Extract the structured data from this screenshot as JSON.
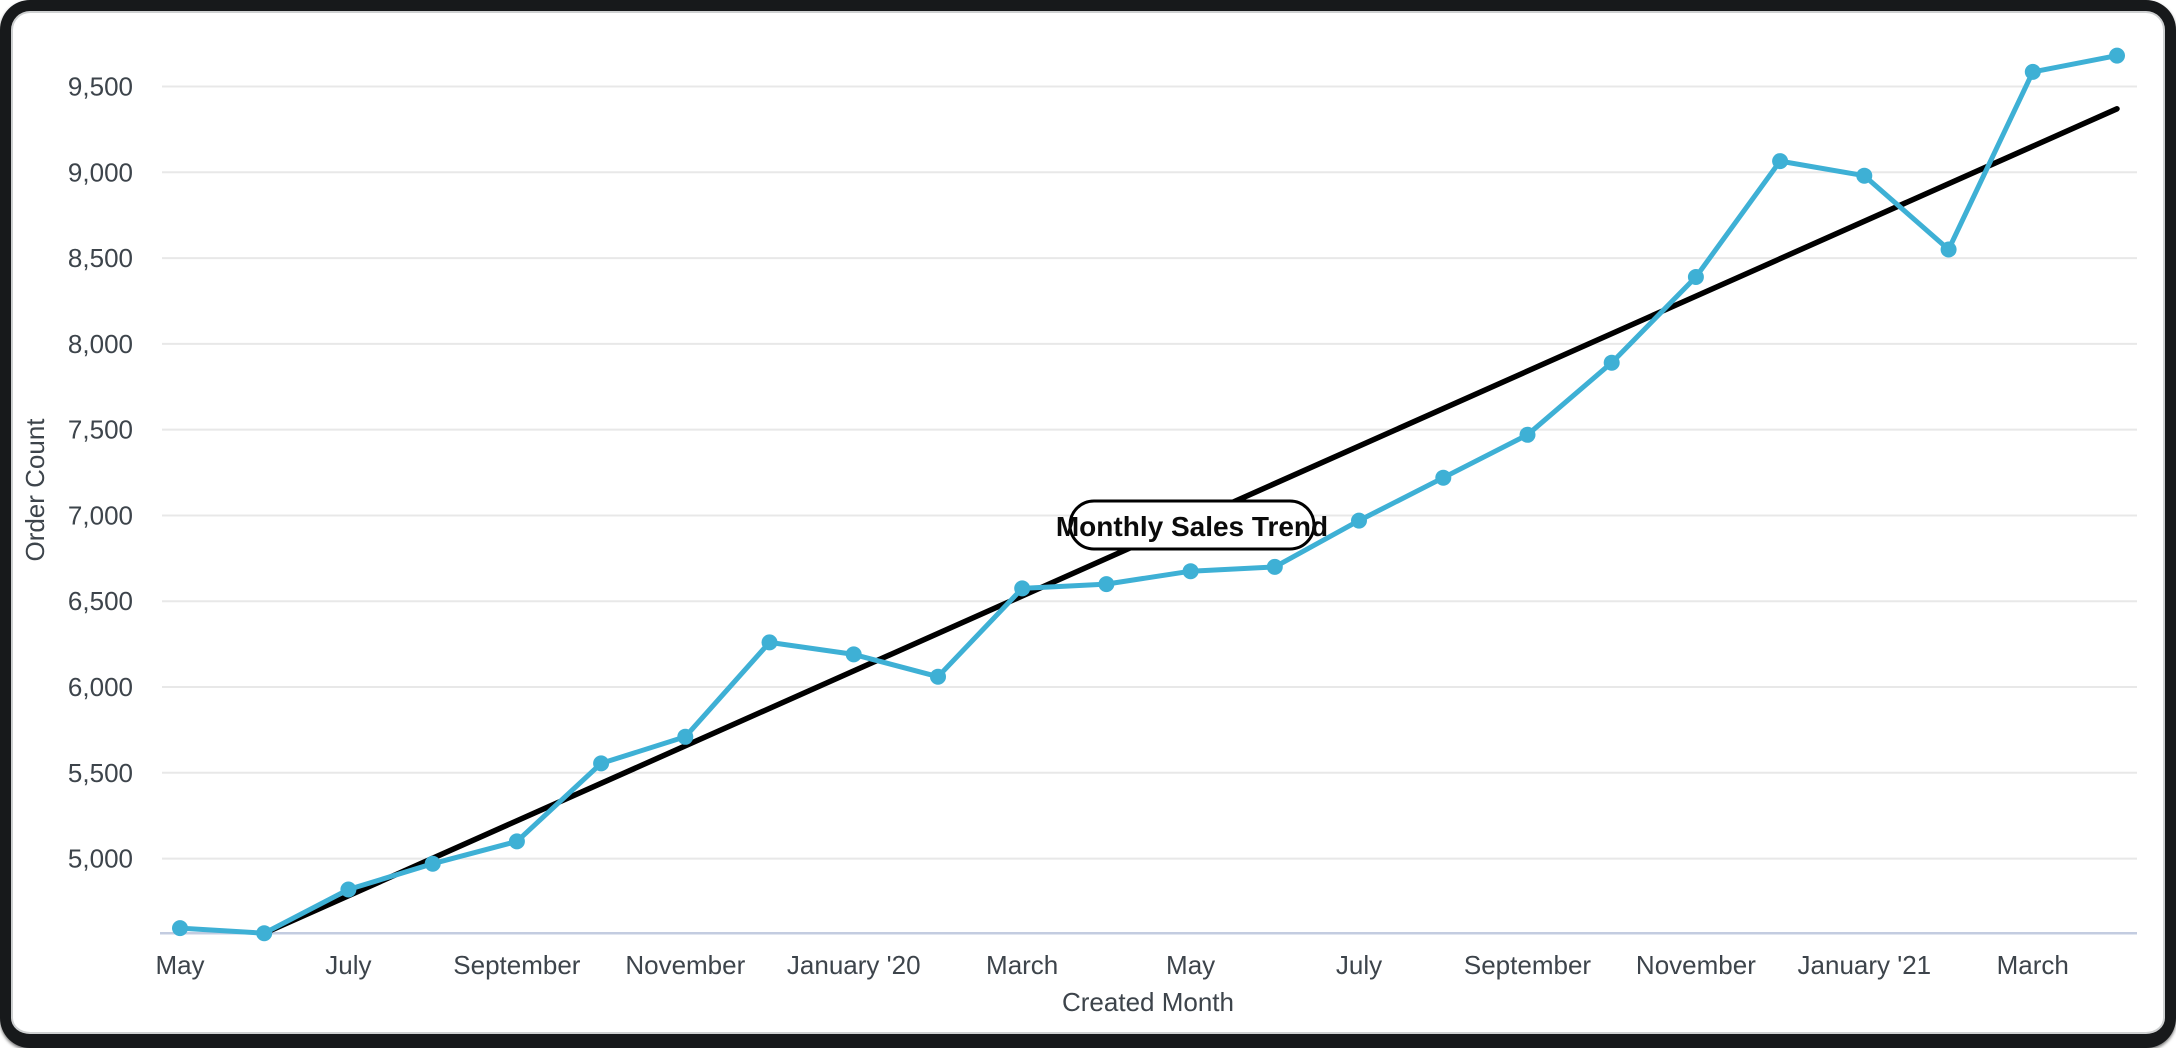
{
  "chart_data": {
    "type": "line",
    "series_label": "Monthly Sales Trend",
    "y_axis_title": "Order Count",
    "x_axis_title": "Created Month",
    "months": [
      "May '19",
      "Jun '19",
      "Jul '19",
      "Aug '19",
      "Sep '19",
      "Oct '19",
      "Nov '19",
      "Dec '19",
      "Jan '20",
      "Feb '20",
      "Mar '20",
      "Apr '20",
      "May '20",
      "Jun '20",
      "Jul '20",
      "Aug '20",
      "Sep '20",
      "Oct '20",
      "Nov '20",
      "Dec '20",
      "Jan '21",
      "Feb '21",
      "Mar '21",
      "Apr '21"
    ],
    "values": [
      4595,
      4565,
      4820,
      4970,
      5100,
      5555,
      5710,
      6260,
      6190,
      6060,
      6575,
      6600,
      6675,
      6700,
      6970,
      7220,
      7470,
      7890,
      8390,
      9065,
      8980,
      8550,
      9585,
      9680
    ],
    "trend_line": {
      "start_index": 1,
      "start_value": 4565,
      "end_index": 23,
      "end_value": 9370
    },
    "y_ticks": [
      5000,
      5500,
      6000,
      6500,
      7000,
      7500,
      8000,
      8500,
      9000,
      9500
    ],
    "y_tick_labels": [
      "5,000",
      "5,500",
      "6,000",
      "6,500",
      "7,000",
      "7,500",
      "8,000",
      "8,500",
      "9,000",
      "9,500"
    ],
    "x_tick_indices": [
      0,
      2,
      4,
      6,
      8,
      10,
      12,
      14,
      16,
      18,
      20,
      22
    ],
    "x_tick_labels": [
      "May",
      "July",
      "September",
      "November",
      "January '20",
      "March",
      "May",
      "July",
      "September",
      "November",
      "January '21",
      "March"
    ],
    "y_axis_range_approx": [
      4565,
      9770
    ],
    "grid": "horizontal",
    "legend_position": "none",
    "colors": {
      "series": "#3eb0d5",
      "trend": "#000000",
      "gridline": "#e8e8e8",
      "axis_line": "#c3cce0",
      "label_text": "#3d444b"
    }
  }
}
